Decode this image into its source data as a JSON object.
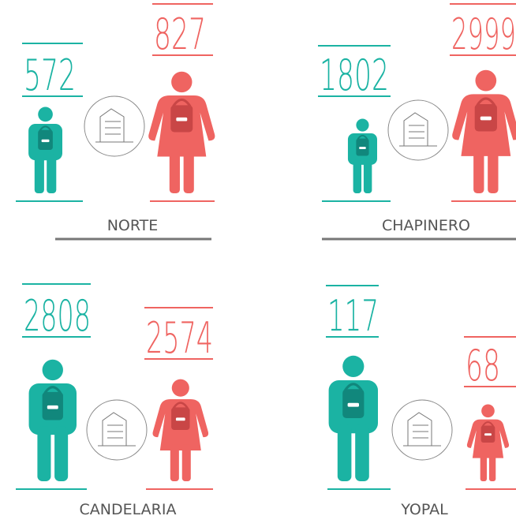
{
  "panels": [
    {
      "name": "NORTE",
      "male": 572,
      "female": 827
    },
    {
      "name": "CHAPINERO",
      "male": 1802,
      "female": 2999
    },
    {
      "name": "CANDELARIA",
      "male": 2808,
      "female": 2574
    },
    {
      "name": "YOPAL",
      "male": 117,
      "female": 68
    }
  ]
}
